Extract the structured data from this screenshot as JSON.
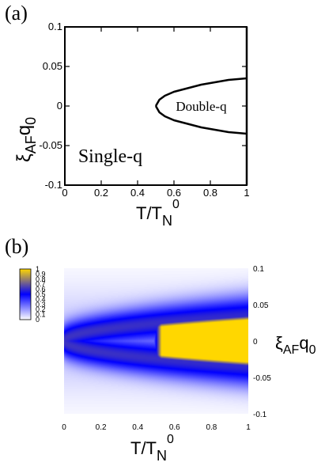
{
  "chart_data": [
    {
      "panel": "(a)",
      "type": "line",
      "xlabel": "T/T",
      "xlabel_sub": "N",
      "xlabel_sup": "0",
      "ylabel": "ξ",
      "ylabel_sub": "AF",
      "ylabel_tail": "q",
      "ylabel_tail_sub": "0",
      "xlim": [
        0,
        1
      ],
      "ylim": [
        -0.1,
        0.1
      ],
      "xticks": [
        0,
        0.2,
        0.4,
        0.6,
        0.8,
        1
      ],
      "xtick_labels": [
        "0",
        "0.2",
        "0.4",
        "0.6",
        "0.8",
        "1"
      ],
      "yticks": [
        -0.1,
        -0.05,
        0,
        0.05,
        0.1
      ],
      "ytick_labels": [
        "-0.1",
        "-0.05",
        "0",
        "0.05",
        "0.1"
      ],
      "grid": false,
      "series": [
        {
          "x": [
            0.5,
            0.52,
            0.55,
            0.6,
            0.65,
            0.7,
            0.75,
            0.8,
            0.85,
            0.9,
            0.95,
            1.0
          ],
          "y": [
            0.0,
            0.008,
            0.013,
            0.018,
            0.021,
            0.024,
            0.027,
            0.029,
            0.031,
            0.033,
            0.034,
            0.035
          ]
        },
        {
          "x": [
            0.5,
            0.52,
            0.55,
            0.6,
            0.65,
            0.7,
            0.75,
            0.8,
            0.85,
            0.9,
            0.95,
            1.0
          ],
          "y": [
            0.0,
            -0.008,
            -0.013,
            -0.018,
            -0.021,
            -0.024,
            -0.027,
            -0.029,
            -0.031,
            -0.033,
            -0.034,
            -0.035
          ]
        },
        {
          "x": [
            1.0,
            1.0
          ],
          "y": [
            -0.1,
            0.1
          ]
        }
      ],
      "annotations": [
        {
          "text": "Double-q",
          "x": 0.75,
          "y": 0.0
        },
        {
          "text": "Single-q",
          "x": 0.25,
          "y": -0.063
        }
      ]
    },
    {
      "panel": "(b)",
      "type": "heatmap",
      "xlabel": "T/T",
      "xlabel_sub": "N",
      "xlabel_sup": "0",
      "ylabel": "ξ",
      "ylabel_sub": "AF",
      "ylabel_tail": "q",
      "ylabel_tail_sub": "0",
      "ylabel_side": "right",
      "xlim": [
        0,
        1
      ],
      "ylim": [
        -0.1,
        0.1
      ],
      "xticks": [
        0,
        0.2,
        0.4,
        0.6,
        0.8,
        1
      ],
      "xtick_labels": [
        "0",
        "0.2",
        "0.4",
        "0.6",
        "0.8",
        "1"
      ],
      "yticks": [
        -0.1,
        -0.05,
        0,
        0.05,
        0.1
      ],
      "ytick_labels": [
        "-0.1",
        "-0.05",
        "0",
        "0.05",
        "0.1"
      ],
      "colorbar": {
        "range": [
          0,
          1
        ],
        "ticks": [
          0,
          0.1,
          0.2,
          0.3,
          0.4,
          0.5,
          0.6,
          0.7,
          0.8,
          0.9,
          1
        ],
        "tick_labels": [
          "0",
          "0.1",
          "0.2",
          "0.3",
          "0.4",
          "0.5",
          "0.6",
          "0.7",
          "0.8",
          "0.9",
          "1"
        ],
        "colors": [
          "#ffffff",
          "#0000ff",
          "#ffd700"
        ]
      },
      "description_values": {
        "ridge_at_T0": 0.0,
        "ridge_amplitude_at_T1": 0.035,
        "plateau_value": 1.0,
        "plateau_onset_T": 0.5
      }
    }
  ]
}
